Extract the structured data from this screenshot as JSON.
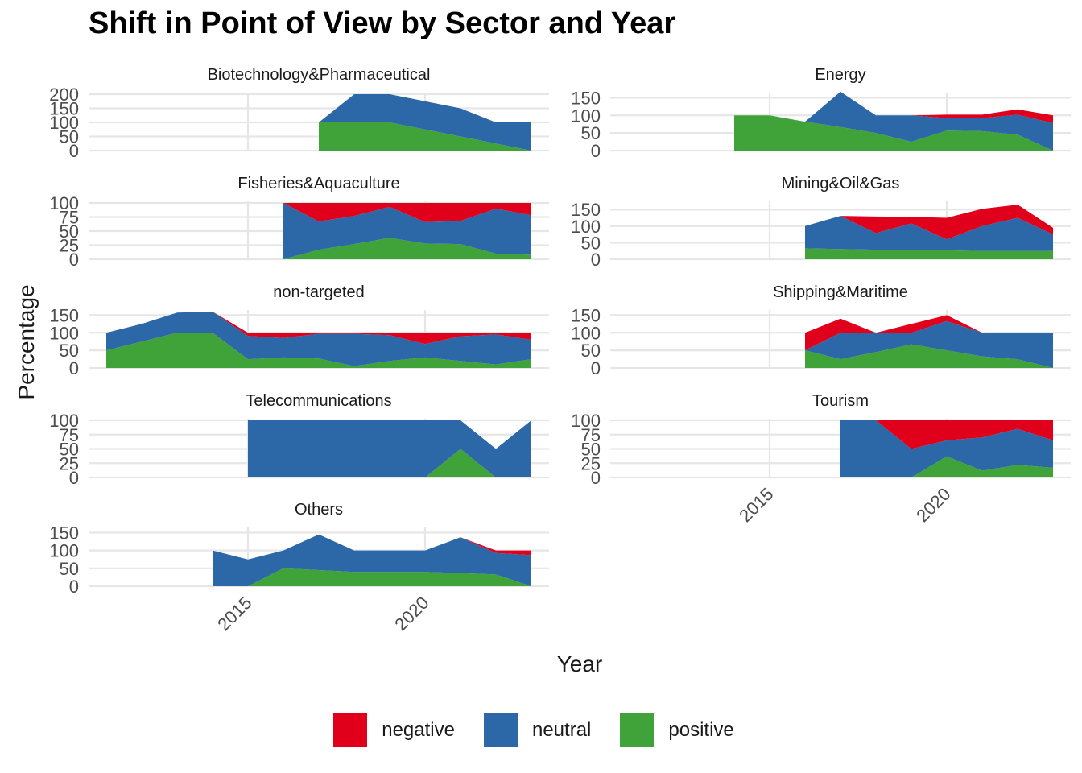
{
  "chart_data": {
    "type": "area",
    "title": "Shift in Point of View by Sector and Year",
    "xlabel": "Year",
    "ylabel": "Percentage",
    "stacking": "stacked",
    "grid": true,
    "legend_position": "bottom",
    "x_ticks": [
      2015,
      2020
    ],
    "series_order": [
      "negative",
      "neutral",
      "positive"
    ],
    "colors": {
      "negative": "#E0001B",
      "neutral": "#2C68A8",
      "positive": "#3FA33A"
    },
    "legend": [
      {
        "name": "negative",
        "color": "#E0001B"
      },
      {
        "name": "neutral",
        "color": "#2C68A8"
      },
      {
        "name": "positive",
        "color": "#3FA33A"
      }
    ],
    "panels": [
      {
        "name": "Biotechnology&Pharmaceutical",
        "yticks": [
          0,
          50,
          100,
          150,
          200
        ],
        "ylim": [
          0,
          200
        ],
        "x": [
          2017,
          2018,
          2019,
          2020,
          2021,
          2022,
          2023
        ],
        "positive": [
          100,
          100,
          100,
          75,
          50,
          25,
          0
        ],
        "neutral": [
          0,
          100,
          100,
          100,
          100,
          75,
          100
        ],
        "negative": [
          0,
          0,
          0,
          0,
          0,
          0,
          0
        ]
      },
      {
        "name": "Energy",
        "yticks": [
          0,
          50,
          100,
          150
        ],
        "ylim": [
          0,
          160
        ],
        "x": [
          2014,
          2015,
          2016,
          2017,
          2018,
          2019,
          2020,
          2021,
          2022,
          2023
        ],
        "positive": [
          100,
          100,
          82,
          67,
          50,
          25,
          57,
          55,
          45,
          0
        ],
        "neutral": [
          0,
          0,
          0,
          100,
          50,
          75,
          35,
          37,
          57,
          78
        ],
        "negative": [
          0,
          0,
          0,
          0,
          0,
          0,
          10,
          10,
          15,
          22
        ]
      },
      {
        "name": "Fisheries&Aquaculture",
        "yticks": [
          0,
          25,
          50,
          75,
          100
        ],
        "ylim": [
          0,
          100
        ],
        "x": [
          2016,
          2017,
          2018,
          2019,
          2020,
          2021,
          2022,
          2023
        ],
        "positive": [
          0,
          17,
          27,
          38,
          28,
          27,
          10,
          8
        ],
        "neutral": [
          100,
          50,
          50,
          55,
          38,
          41,
          80,
          70
        ],
        "negative": [
          0,
          33,
          23,
          7,
          34,
          32,
          10,
          22
        ]
      },
      {
        "name": "Mining&Oil&Gas",
        "yticks": [
          0,
          50,
          100,
          150
        ],
        "ylim": [
          0,
          170
        ],
        "x": [
          2016,
          2017,
          2018,
          2019,
          2020,
          2021,
          2022,
          2023
        ],
        "positive": [
          33,
          31,
          29,
          28,
          27,
          25,
          25,
          25
        ],
        "neutral": [
          67,
          100,
          50,
          80,
          33,
          75,
          100,
          50
        ],
        "negative": [
          0,
          0,
          50,
          20,
          65,
          52,
          40,
          20
        ]
      },
      {
        "name": "non-targeted",
        "yticks": [
          0,
          50,
          100,
          150
        ],
        "ylim": [
          0,
          160
        ],
        "x": [
          2011,
          2012,
          2013,
          2014,
          2015,
          2016,
          2017,
          2018,
          2019,
          2020,
          2021,
          2022,
          2023
        ],
        "positive": [
          50,
          75,
          100,
          100,
          25,
          30,
          27,
          5,
          20,
          30,
          20,
          10,
          25
        ],
        "neutral": [
          50,
          50,
          57,
          60,
          66,
          55,
          70,
          92,
          73,
          38,
          70,
          85,
          55
        ],
        "negative": [
          0,
          0,
          0,
          0,
          9,
          15,
          3,
          3,
          7,
          32,
          10,
          5,
          20
        ]
      },
      {
        "name": "Shipping&Maritime",
        "yticks": [
          0,
          50,
          100,
          150
        ],
        "ylim": [
          0,
          160
        ],
        "x": [
          2016,
          2017,
          2018,
          2019,
          2020,
          2021,
          2022,
          2023
        ],
        "positive": [
          50,
          25,
          45,
          67,
          50,
          33,
          25,
          0
        ],
        "neutral": [
          0,
          75,
          55,
          33,
          83,
          67,
          75,
          100
        ],
        "negative": [
          50,
          40,
          0,
          25,
          17,
          0,
          0,
          0
        ]
      },
      {
        "name": "Telecommunications",
        "yticks": [
          0,
          25,
          50,
          75,
          100
        ],
        "ylim": [
          0,
          100
        ],
        "x": [
          2015,
          2016,
          2017,
          2018,
          2019,
          2020,
          2021,
          2022,
          2023
        ],
        "positive": [
          0,
          0,
          0,
          0,
          0,
          0,
          50,
          0,
          0
        ],
        "neutral": [
          100,
          100,
          100,
          100,
          100,
          100,
          50,
          50,
          100
        ],
        "negative": [
          0,
          0,
          0,
          0,
          0,
          0,
          0,
          0,
          0
        ]
      },
      {
        "name": "Tourism",
        "yticks": [
          0,
          25,
          50,
          75,
          100
        ],
        "ylim": [
          0,
          100
        ],
        "x": [
          2017,
          2018,
          2019,
          2020,
          2021,
          2022,
          2023
        ],
        "positive": [
          0,
          0,
          0,
          37,
          12,
          22,
          17
        ],
        "neutral": [
          100,
          100,
          50,
          28,
          58,
          63,
          48
        ],
        "negative": [
          0,
          0,
          50,
          35,
          30,
          15,
          35
        ]
      },
      {
        "name": "Others",
        "yticks": [
          0,
          50,
          100,
          150
        ],
        "ylim": [
          0,
          160
        ],
        "x": [
          2014,
          2015,
          2016,
          2017,
          2018,
          2019,
          2020,
          2021,
          2022,
          2023
        ],
        "positive": [
          0,
          0,
          50,
          45,
          40,
          40,
          40,
          37,
          33,
          0
        ],
        "neutral": [
          100,
          75,
          50,
          100,
          60,
          60,
          60,
          100,
          60,
          87
        ],
        "negative": [
          0,
          0,
          0,
          0,
          0,
          0,
          0,
          0,
          7,
          13
        ]
      }
    ]
  }
}
